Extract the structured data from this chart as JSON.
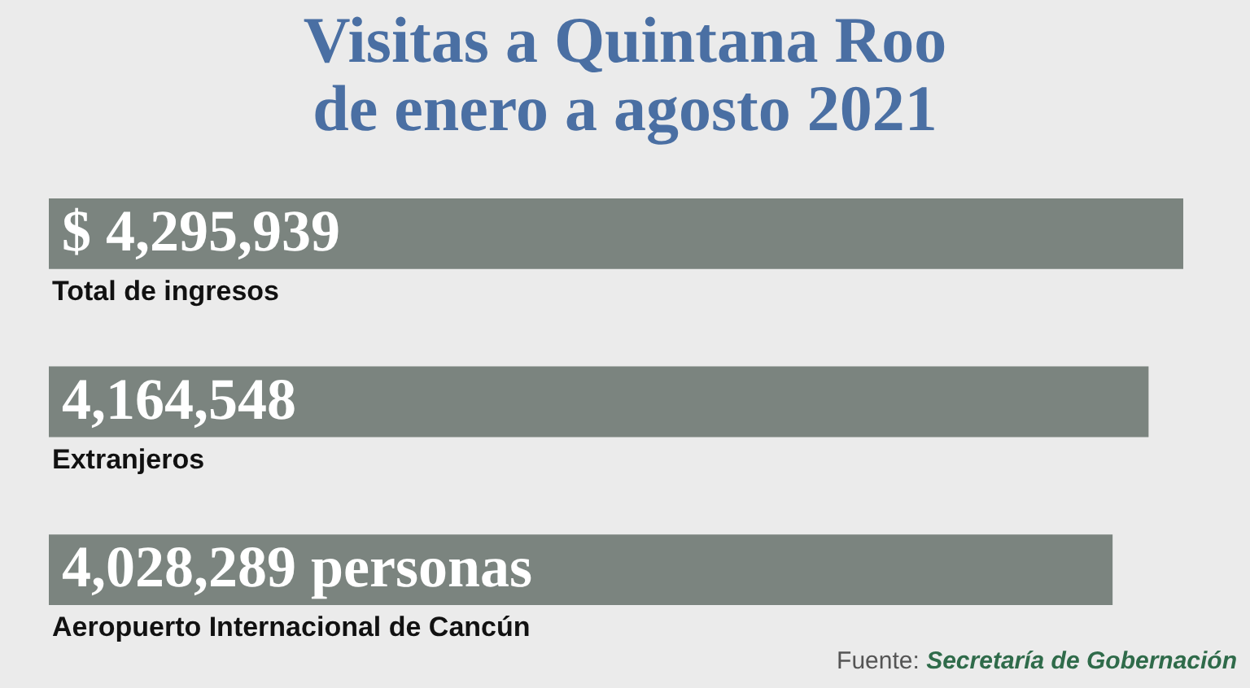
{
  "chart_data": {
    "type": "bar",
    "orientation": "horizontal",
    "title": "Visitas a Quintana Roo\nde enero a agosto 2021",
    "categories": [
      "Total de ingresos",
      "Extranjeros",
      "Aeropuerto Internacional de Cancún"
    ],
    "values": [
      4295939,
      4164548,
      4028289
    ],
    "value_labels": [
      "$ 4,295,939",
      "4,164,548",
      "4,028,289 personas"
    ],
    "color": "#7b847f",
    "annotations": [
      "Fuente:",
      "Secretaría de Gobernación"
    ]
  }
}
